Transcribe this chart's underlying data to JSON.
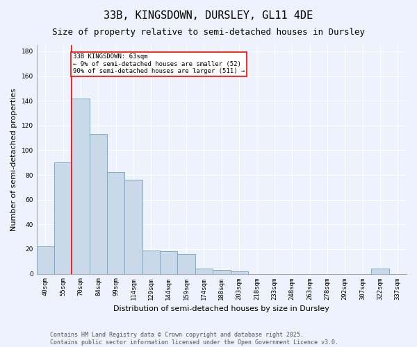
{
  "title": "33B, KINGSDOWN, DURSLEY, GL11 4DE",
  "subtitle": "Size of property relative to semi-detached houses in Dursley",
  "xlabel": "Distribution of semi-detached houses by size in Dursley",
  "ylabel": "Number of semi-detached properties",
  "categories": [
    "40sqm",
    "55sqm",
    "70sqm",
    "84sqm",
    "99sqm",
    "114sqm",
    "129sqm",
    "144sqm",
    "159sqm",
    "174sqm",
    "188sqm",
    "203sqm",
    "218sqm",
    "233sqm",
    "248sqm",
    "263sqm",
    "278sqm",
    "292sqm",
    "307sqm",
    "322sqm",
    "337sqm"
  ],
  "values": [
    22,
    90,
    142,
    113,
    82,
    76,
    19,
    18,
    16,
    4,
    3,
    2,
    0,
    0,
    0,
    0,
    0,
    0,
    0,
    4,
    0
  ],
  "bar_color": "#c9d9ea",
  "bar_edge_color": "#7aaac8",
  "bar_edge_width": 0.7,
  "annotation_text": "33B KINGSDOWN: 63sqm\n← 9% of semi-detached houses are smaller (52)\n90% of semi-detached houses are larger (511) →",
  "annotation_box_color": "white",
  "annotation_box_edge_color": "red",
  "ylim": [
    0,
    185
  ],
  "yticks": [
    0,
    20,
    40,
    60,
    80,
    100,
    120,
    140,
    160,
    180
  ],
  "footer_line1": "Contains HM Land Registry data © Crown copyright and database right 2025.",
  "footer_line2": "Contains public sector information licensed under the Open Government Licence v3.0.",
  "background_color": "#eef2fc",
  "grid_color": "#ffffff",
  "title_fontsize": 11,
  "subtitle_fontsize": 9,
  "axis_label_fontsize": 8,
  "tick_fontsize": 6.5,
  "annotation_fontsize": 6.5,
  "footer_fontsize": 6
}
